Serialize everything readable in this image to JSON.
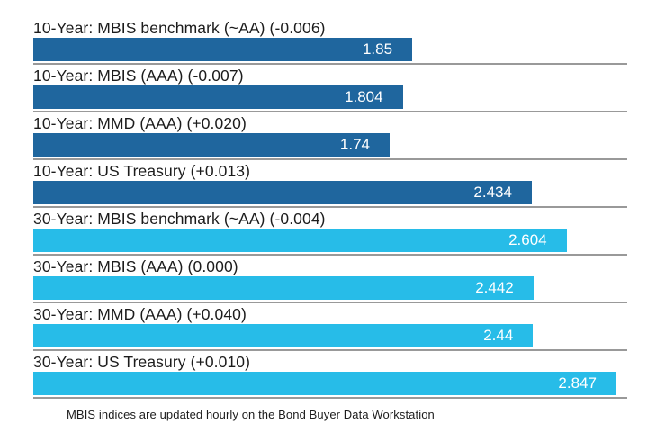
{
  "chart_data": {
    "type": "bar",
    "orientation": "horizontal",
    "title": "",
    "xlabel": "",
    "ylabel": "",
    "xlim": [
      0,
      2.9
    ],
    "grid": false,
    "legend_position": "none",
    "series_colors": {
      "10-year": "#1f669e",
      "30-year": "#27bce8"
    },
    "separator_color": "#999999",
    "value_label_color": "#ffffff",
    "bars": [
      {
        "label": "10-Year: MBIS benchmark (~AA) (-0.006)",
        "value": 1.85,
        "value_label": "1.85",
        "group": "10-year"
      },
      {
        "label": "10-Year: MBIS (AAA) (-0.007)",
        "value": 1.804,
        "value_label": "1.804",
        "group": "10-year"
      },
      {
        "label": "10-Year: MMD (AAA) (+0.020)",
        "value": 1.74,
        "value_label": "1.74",
        "group": "10-year"
      },
      {
        "label": "10-Year: US Treasury (+0.013)",
        "value": 2.434,
        "value_label": "2.434",
        "group": "10-year"
      },
      {
        "label": "30-Year: MBIS benchmark (~AA) (-0.004)",
        "value": 2.604,
        "value_label": "2.604",
        "group": "30-year"
      },
      {
        "label": "30-Year: MBIS (AAA) (0.000)",
        "value": 2.442,
        "value_label": "2.442",
        "group": "30-year"
      },
      {
        "label": "30-Year: MMD (AAA) (+0.040)",
        "value": 2.44,
        "value_label": "2.44",
        "group": "30-year"
      },
      {
        "label": "30-Year: US Treasury (+0.010)",
        "value": 2.847,
        "value_label": "2.847",
        "group": "30-year"
      }
    ],
    "footnote": "MBIS indices are updated hourly on the Bond Buyer Data Workstation"
  }
}
